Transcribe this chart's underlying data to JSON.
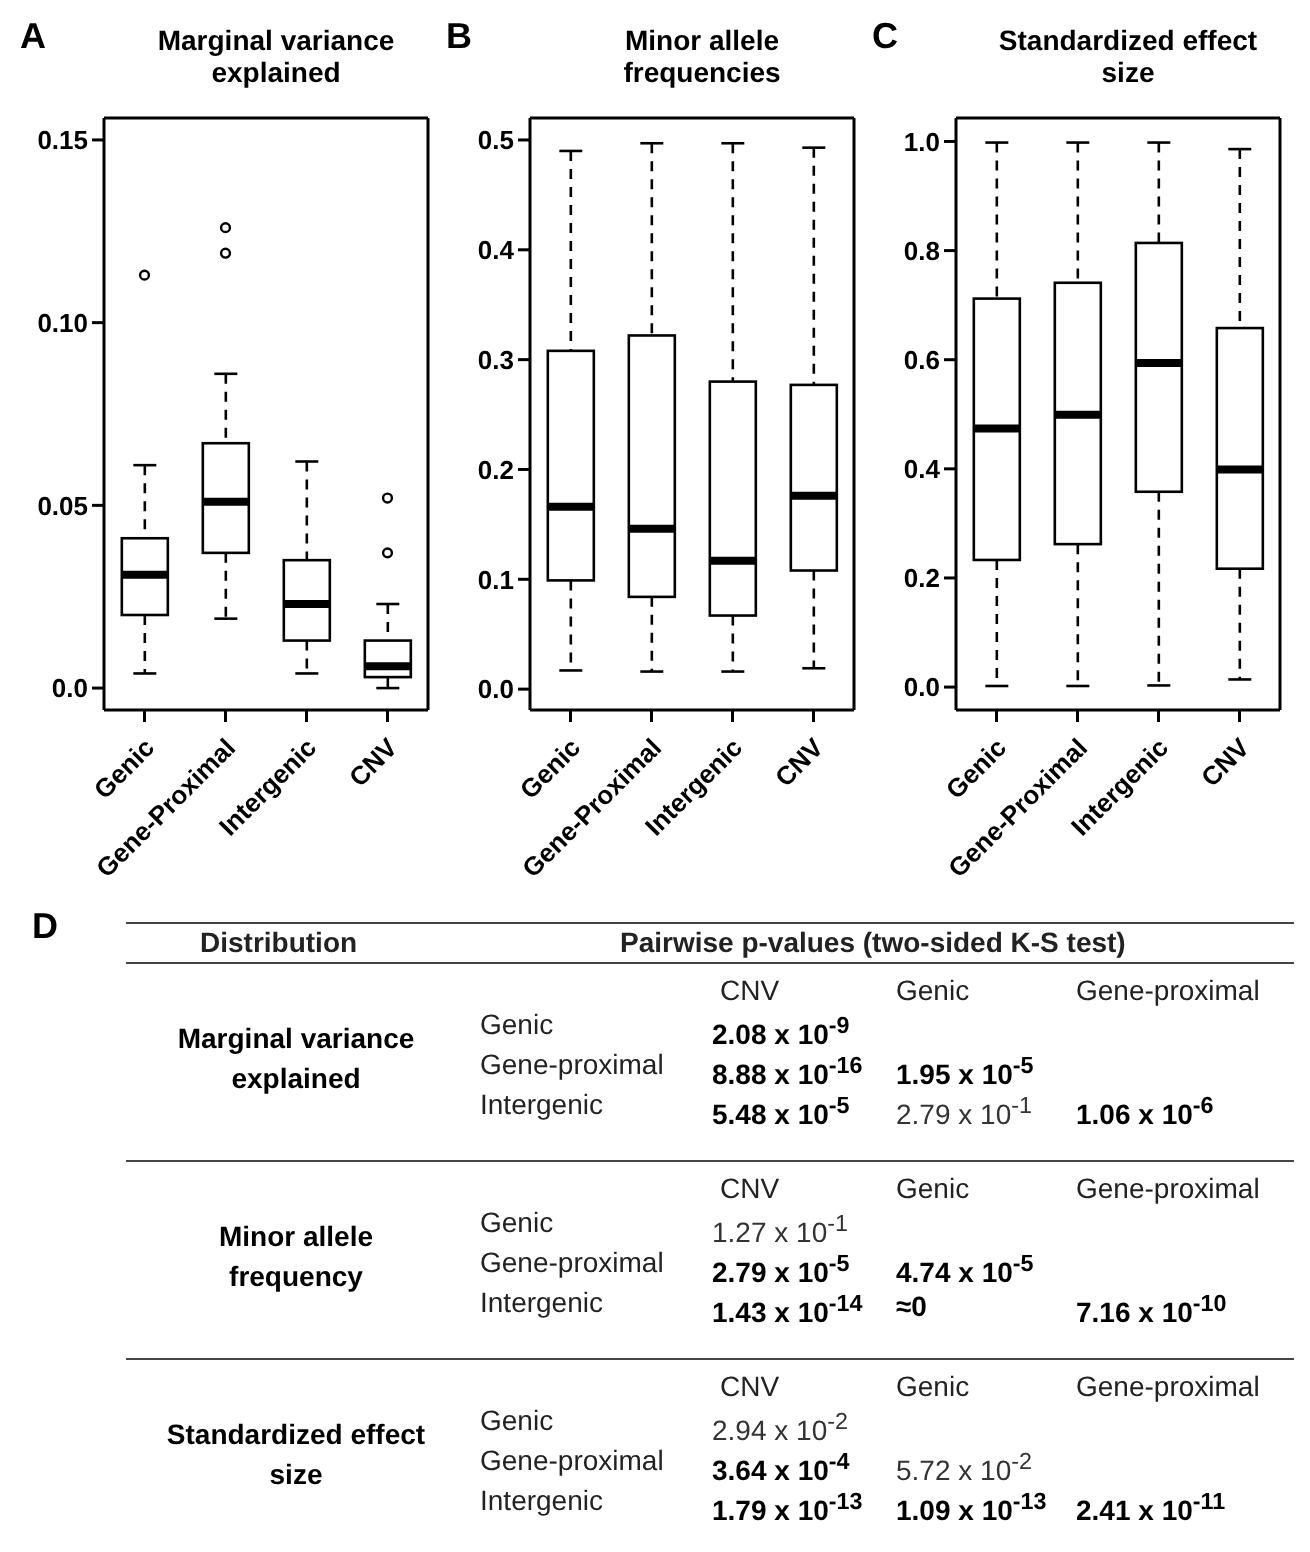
{
  "chart_data": [
    {
      "type": "box",
      "title": "Marginal variance explained",
      "annotations": [
        "A"
      ],
      "categories": [
        "Genic",
        "Gene-Proximal",
        "Intergenic",
        "CNV"
      ],
      "ylim": [
        -0.006,
        0.156
      ],
      "yticks": [
        {
          "value": 0,
          "label": "0.0"
        },
        0.05,
        {
          "value": 0.1,
          "label": "0.10"
        },
        0.15
      ],
      "boxes": [
        {
          "low": 0.004,
          "q1": 0.02,
          "median": 0.031,
          "q3": 0.041,
          "high": 0.061,
          "outliers": [
            0.113
          ]
        },
        {
          "low": 0.019,
          "q1": 0.037,
          "median": 0.051,
          "q3": 0.067,
          "high": 0.086,
          "outliers": [
            0.119,
            0.126
          ]
        },
        {
          "low": 0.004,
          "q1": 0.013,
          "median": 0.023,
          "q3": 0.035,
          "high": 0.062
        },
        {
          "low": 0.0,
          "q1": 0.003,
          "median": 0.006,
          "q3": 0.013,
          "high": 0.023,
          "outliers": [
            0.037,
            0.052
          ]
        }
      ]
    },
    {
      "type": "box",
      "title": "Minor allele frequencies",
      "annotations": [
        "B"
      ],
      "categories": [
        "Genic",
        "Gene-Proximal",
        "Intergenic",
        "CNV"
      ],
      "ylim": [
        -0.019,
        0.52
      ],
      "yticks": [
        {
          "value": 0,
          "label": "0.0"
        },
        0.1,
        0.2,
        0.3,
        0.4,
        0.5
      ],
      "boxes": [
        {
          "low": 0.017,
          "q1": 0.099,
          "median": 0.166,
          "q3": 0.308,
          "high": 0.49
        },
        {
          "low": 0.016,
          "q1": 0.084,
          "median": 0.146,
          "q3": 0.322,
          "high": 0.497
        },
        {
          "low": 0.016,
          "q1": 0.067,
          "median": 0.117,
          "q3": 0.28,
          "high": 0.497
        },
        {
          "low": 0.019,
          "q1": 0.108,
          "median": 0.176,
          "q3": 0.277,
          "high": 0.493
        }
      ]
    },
    {
      "type": "box",
      "title": "Standardized effect size",
      "annotations": [
        "C"
      ],
      "categories": [
        "Genic",
        "Gene-Proximal",
        "Intergenic",
        "CNV"
      ],
      "ylim": [
        -0.042,
        1.043
      ],
      "yticks": [
        {
          "value": 0,
          "label": "0.0"
        },
        0.2,
        0.4,
        0.6,
        0.8,
        {
          "value": 1,
          "label": "1.0"
        }
      ],
      "boxes": [
        {
          "low": 0.002,
          "q1": 0.233,
          "median": 0.474,
          "q3": 0.712,
          "high": 0.998
        },
        {
          "low": 0.002,
          "q1": 0.262,
          "median": 0.499,
          "q3": 0.741,
          "high": 0.998
        },
        {
          "low": 0.003,
          "q1": 0.358,
          "median": 0.594,
          "q3": 0.814,
          "high": 0.998
        },
        {
          "low": 0.014,
          "q1": 0.217,
          "median": 0.399,
          "q3": 0.658,
          "high": 0.986
        }
      ]
    },
    {
      "type": "other",
      "annotations": [
        "D",
        "Distribution",
        "Pairwise p-values (two-sided K-S test)",
        "Marginal variance explained",
        "CNV",
        "Genic",
        "Gene-proximal",
        "Genic",
        "Gene-proximal",
        "Intergenic",
        "2.08 x 10$^{-9}$",
        "8.88 x 10$^{-16}$",
        "1.95 x 10$^{-5}$",
        "5.48 x 10$^{-5}$",
        "2.79 x 10$^{-1}$",
        "1.06 x 10$^{-6}$",
        "Minor allele frequency",
        "CNV",
        "Genic",
        "Gene-proximal",
        "Genic",
        "Gene-proximal",
        "Intergenic",
        "1.27 x 10$^{-1}$",
        "2.79 x 10$^{-5}$",
        "4.74 x 10$^{-5}$",
        "1.43 x 10$^{-14}$",
        "≈0",
        "7.16 x 10$^{-10}$",
        "Standardized effect size",
        "CNV",
        "Genic",
        "Gene-proximal",
        "Genic",
        "Gene-proximal",
        "Intergenic",
        "2.94 x 10$^{-2}$",
        "3.64 x 10$^{-4}$",
        "5.72 x 10$^{-2}$",
        "1.79 x 10$^{-13}$",
        "1.09 x 10$^{-13}$",
        "2.41 x 10$^{-11}$"
      ]
    }
  ]
}
